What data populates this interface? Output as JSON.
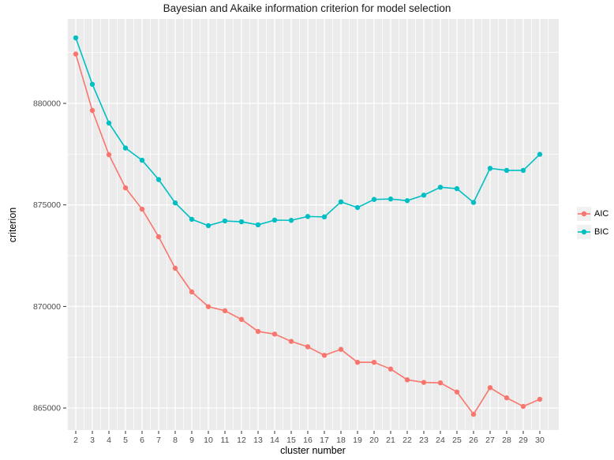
{
  "chart": {
    "title": "Bayesian and Akaike information criterion for model selection",
    "xlabel": "cluster number",
    "ylabel": "criterion"
  },
  "chart_data": {
    "type": "line",
    "title": "Bayesian and Akaike information criterion for model selection",
    "xlabel": "cluster number",
    "ylabel": "criterion",
    "x": [
      2,
      3,
      4,
      5,
      6,
      7,
      8,
      9,
      10,
      11,
      12,
      13,
      14,
      15,
      16,
      17,
      18,
      19,
      20,
      21,
      22,
      23,
      24,
      25,
      26,
      27,
      28,
      29,
      30
    ],
    "series": [
      {
        "name": "AIC",
        "color": "#F8766D",
        "values": [
          882430,
          879650,
          877475,
          875840,
          874790,
          873430,
          871880,
          870715,
          869990,
          869790,
          869360,
          868770,
          868640,
          868280,
          868015,
          867595,
          867890,
          867250,
          867250,
          866920,
          866390,
          866260,
          866240,
          865790,
          864690,
          866000,
          865500,
          865080,
          865430
        ]
      },
      {
        "name": "BIC",
        "color": "#00BFC4",
        "values": [
          883225,
          880940,
          879030,
          877800,
          877200,
          876250,
          875100,
          874290,
          873980,
          874210,
          874170,
          874020,
          874250,
          874240,
          874430,
          874410,
          875150,
          874870,
          875270,
          875290,
          875210,
          875480,
          875870,
          875800,
          875120,
          876800,
          876700,
          876700,
          877490
        ]
      }
    ],
    "x_ticks": [
      2,
      3,
      4,
      5,
      6,
      7,
      8,
      9,
      10,
      11,
      12,
      13,
      14,
      15,
      16,
      17,
      18,
      19,
      20,
      21,
      22,
      23,
      24,
      25,
      26,
      27,
      28,
      29,
      30
    ],
    "y_ticks": [
      865000,
      870000,
      875000,
      880000
    ],
    "y_minor_ticks": [
      867500,
      872500,
      877500,
      882500
    ],
    "ylim": [
      863700,
      884200
    ],
    "xlim": [
      1.5,
      31.1
    ],
    "grid": "on",
    "legend_position": "right",
    "panel_background": "#EBEBEB",
    "grid_color": "#FFFFFF",
    "tick_label_color": "#4d4d4d",
    "tick_mark_color": "#333333"
  }
}
